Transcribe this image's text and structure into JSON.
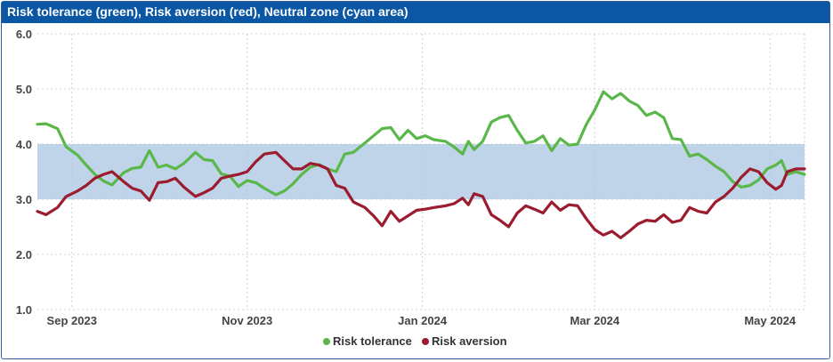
{
  "window": {
    "title": "Risk tolerance (green), Risk aversion (red), Neutral zone (cyan area)"
  },
  "colors": {
    "title_bg": "#0b57a4",
    "risk_tolerance": "#5ab84a",
    "risk_aversion": "#9b1c2e",
    "neutral_zone": "#a9c6e1"
  },
  "chart_data": {
    "type": "line",
    "title": "Risk tolerance (green), Risk aversion (red), Neutral zone (cyan area)",
    "x_range": [
      "2023-08-20",
      "2024-05-13"
    ],
    "ylim": [
      1.0,
      6.0
    ],
    "y_ticks": [
      "1.0",
      "2.0",
      "3.0",
      "4.0",
      "5.0",
      "6.0"
    ],
    "x_ticks": [
      {
        "date": "2023-09-01",
        "label": "Sep 2023"
      },
      {
        "date": "2023-11-01",
        "label": "Nov 2023"
      },
      {
        "date": "2024-01-01",
        "label": "Jan 2024"
      },
      {
        "date": "2024-03-01",
        "label": "Mar 2024"
      },
      {
        "date": "2024-05-01",
        "label": "May 2024"
      }
    ],
    "grid": true,
    "legend_position": "bottom-center",
    "neutral_zone": {
      "low": 3.0,
      "high": 4.0
    },
    "series": [
      {
        "name": "Risk tolerance",
        "points": [
          [
            "2023-08-20",
            4.36
          ],
          [
            "2023-08-23",
            4.37
          ],
          [
            "2023-08-27",
            4.28
          ],
          [
            "2023-08-30",
            3.95
          ],
          [
            "2023-09-03",
            3.8
          ],
          [
            "2023-09-06",
            3.62
          ],
          [
            "2023-09-09",
            3.45
          ],
          [
            "2023-09-12",
            3.33
          ],
          [
            "2023-09-15",
            3.26
          ],
          [
            "2023-09-19",
            3.48
          ],
          [
            "2023-09-22",
            3.56
          ],
          [
            "2023-09-25",
            3.58
          ],
          [
            "2023-09-28",
            3.88
          ],
          [
            "2023-10-01",
            3.58
          ],
          [
            "2023-10-04",
            3.62
          ],
          [
            "2023-10-07",
            3.55
          ],
          [
            "2023-10-10",
            3.65
          ],
          [
            "2023-10-14",
            3.85
          ],
          [
            "2023-10-17",
            3.72
          ],
          [
            "2023-10-20",
            3.7
          ],
          [
            "2023-10-23",
            3.46
          ],
          [
            "2023-10-26",
            3.42
          ],
          [
            "2023-10-29",
            3.23
          ],
          [
            "2023-11-01",
            3.34
          ],
          [
            "2023-11-04",
            3.3
          ],
          [
            "2023-11-07",
            3.2
          ],
          [
            "2023-11-11",
            3.08
          ],
          [
            "2023-11-14",
            3.15
          ],
          [
            "2023-11-17",
            3.28
          ],
          [
            "2023-11-20",
            3.45
          ],
          [
            "2023-11-23",
            3.58
          ],
          [
            "2023-11-26",
            3.63
          ],
          [
            "2023-11-29",
            3.55
          ],
          [
            "2023-12-02",
            3.5
          ],
          [
            "2023-12-05",
            3.82
          ],
          [
            "2023-12-08",
            3.85
          ],
          [
            "2023-12-12",
            4.02
          ],
          [
            "2023-12-15",
            4.15
          ],
          [
            "2023-12-18",
            4.28
          ],
          [
            "2023-12-21",
            4.3
          ],
          [
            "2023-12-24",
            4.08
          ],
          [
            "2023-12-27",
            4.25
          ],
          [
            "2023-12-30",
            4.1
          ],
          [
            "2024-01-02",
            4.15
          ],
          [
            "2024-01-05",
            4.08
          ],
          [
            "2024-01-09",
            4.05
          ],
          [
            "2024-01-12",
            3.95
          ],
          [
            "2024-01-15",
            3.82
          ],
          [
            "2024-01-17",
            4.05
          ],
          [
            "2024-01-19",
            3.9
          ],
          [
            "2024-01-22",
            4.05
          ],
          [
            "2024-01-25",
            4.4
          ],
          [
            "2024-01-28",
            4.48
          ],
          [
            "2024-01-31",
            4.52
          ],
          [
            "2024-02-03",
            4.25
          ],
          [
            "2024-02-06",
            4.02
          ],
          [
            "2024-02-09",
            4.05
          ],
          [
            "2024-02-12",
            4.15
          ],
          [
            "2024-02-15",
            3.88
          ],
          [
            "2024-02-18",
            4.1
          ],
          [
            "2024-02-21",
            3.98
          ],
          [
            "2024-02-24",
            4.0
          ],
          [
            "2024-02-27",
            4.35
          ],
          [
            "2024-03-01",
            4.62
          ],
          [
            "2024-03-04",
            4.95
          ],
          [
            "2024-03-07",
            4.82
          ],
          [
            "2024-03-10",
            4.92
          ],
          [
            "2024-03-13",
            4.78
          ],
          [
            "2024-03-16",
            4.7
          ],
          [
            "2024-03-19",
            4.52
          ],
          [
            "2024-03-22",
            4.58
          ],
          [
            "2024-03-25",
            4.48
          ],
          [
            "2024-03-28",
            4.1
          ],
          [
            "2024-03-31",
            4.08
          ],
          [
            "2024-04-03",
            3.78
          ],
          [
            "2024-04-06",
            3.82
          ],
          [
            "2024-04-09",
            3.72
          ],
          [
            "2024-04-12",
            3.6
          ],
          [
            "2024-04-15",
            3.5
          ],
          [
            "2024-04-18",
            3.32
          ],
          [
            "2024-04-21",
            3.22
          ],
          [
            "2024-04-24",
            3.25
          ],
          [
            "2024-04-27",
            3.35
          ],
          [
            "2024-04-30",
            3.55
          ],
          [
            "2024-05-03",
            3.62
          ],
          [
            "2024-05-05",
            3.7
          ],
          [
            "2024-05-07",
            3.45
          ],
          [
            "2024-05-10",
            3.5
          ],
          [
            "2024-05-13",
            3.45
          ]
        ]
      },
      {
        "name": "Risk aversion",
        "points": [
          [
            "2023-08-20",
            2.78
          ],
          [
            "2023-08-23",
            2.72
          ],
          [
            "2023-08-27",
            2.85
          ],
          [
            "2023-08-30",
            3.05
          ],
          [
            "2023-09-03",
            3.15
          ],
          [
            "2023-09-06",
            3.25
          ],
          [
            "2023-09-09",
            3.38
          ],
          [
            "2023-09-12",
            3.45
          ],
          [
            "2023-09-15",
            3.5
          ],
          [
            "2023-09-19",
            3.32
          ],
          [
            "2023-09-22",
            3.2
          ],
          [
            "2023-09-25",
            3.15
          ],
          [
            "2023-09-28",
            2.98
          ],
          [
            "2023-10-01",
            3.3
          ],
          [
            "2023-10-04",
            3.32
          ],
          [
            "2023-10-07",
            3.38
          ],
          [
            "2023-10-10",
            3.22
          ],
          [
            "2023-10-14",
            3.05
          ],
          [
            "2023-10-17",
            3.12
          ],
          [
            "2023-10-20",
            3.2
          ],
          [
            "2023-10-23",
            3.38
          ],
          [
            "2023-10-26",
            3.42
          ],
          [
            "2023-10-29",
            3.45
          ],
          [
            "2023-11-01",
            3.5
          ],
          [
            "2023-11-04",
            3.68
          ],
          [
            "2023-11-07",
            3.82
          ],
          [
            "2023-11-11",
            3.85
          ],
          [
            "2023-11-14",
            3.7
          ],
          [
            "2023-11-17",
            3.55
          ],
          [
            "2023-11-20",
            3.55
          ],
          [
            "2023-11-23",
            3.65
          ],
          [
            "2023-11-26",
            3.62
          ],
          [
            "2023-11-29",
            3.55
          ],
          [
            "2023-12-02",
            3.25
          ],
          [
            "2023-12-05",
            3.2
          ],
          [
            "2023-12-08",
            2.95
          ],
          [
            "2023-12-12",
            2.85
          ],
          [
            "2023-12-15",
            2.7
          ],
          [
            "2023-12-18",
            2.52
          ],
          [
            "2023-12-21",
            2.78
          ],
          [
            "2023-12-24",
            2.6
          ],
          [
            "2023-12-27",
            2.7
          ],
          [
            "2023-12-30",
            2.8
          ],
          [
            "2024-01-02",
            2.82
          ],
          [
            "2024-01-05",
            2.85
          ],
          [
            "2024-01-09",
            2.88
          ],
          [
            "2024-01-12",
            2.92
          ],
          [
            "2024-01-15",
            3.02
          ],
          [
            "2024-01-17",
            2.9
          ],
          [
            "2024-01-19",
            3.1
          ],
          [
            "2024-01-22",
            3.05
          ],
          [
            "2024-01-25",
            2.72
          ],
          [
            "2024-01-28",
            2.62
          ],
          [
            "2024-01-31",
            2.5
          ],
          [
            "2024-02-03",
            2.75
          ],
          [
            "2024-02-06",
            2.88
          ],
          [
            "2024-02-09",
            2.82
          ],
          [
            "2024-02-12",
            2.75
          ],
          [
            "2024-02-15",
            2.95
          ],
          [
            "2024-02-18",
            2.8
          ],
          [
            "2024-02-21",
            2.9
          ],
          [
            "2024-02-24",
            2.88
          ],
          [
            "2024-02-27",
            2.65
          ],
          [
            "2024-03-01",
            2.45
          ],
          [
            "2024-03-04",
            2.35
          ],
          [
            "2024-03-07",
            2.42
          ],
          [
            "2024-03-10",
            2.3
          ],
          [
            "2024-03-13",
            2.42
          ],
          [
            "2024-03-16",
            2.55
          ],
          [
            "2024-03-19",
            2.62
          ],
          [
            "2024-03-22",
            2.6
          ],
          [
            "2024-03-25",
            2.72
          ],
          [
            "2024-03-28",
            2.58
          ],
          [
            "2024-03-31",
            2.62
          ],
          [
            "2024-04-03",
            2.85
          ],
          [
            "2024-04-06",
            2.78
          ],
          [
            "2024-04-09",
            2.75
          ],
          [
            "2024-04-12",
            2.95
          ],
          [
            "2024-04-15",
            3.05
          ],
          [
            "2024-04-18",
            3.2
          ],
          [
            "2024-04-21",
            3.4
          ],
          [
            "2024-04-24",
            3.55
          ],
          [
            "2024-04-27",
            3.5
          ],
          [
            "2024-04-30",
            3.3
          ],
          [
            "2024-05-03",
            3.18
          ],
          [
            "2024-05-05",
            3.25
          ],
          [
            "2024-05-07",
            3.5
          ],
          [
            "2024-05-10",
            3.55
          ],
          [
            "2024-05-13",
            3.55
          ]
        ]
      }
    ]
  }
}
